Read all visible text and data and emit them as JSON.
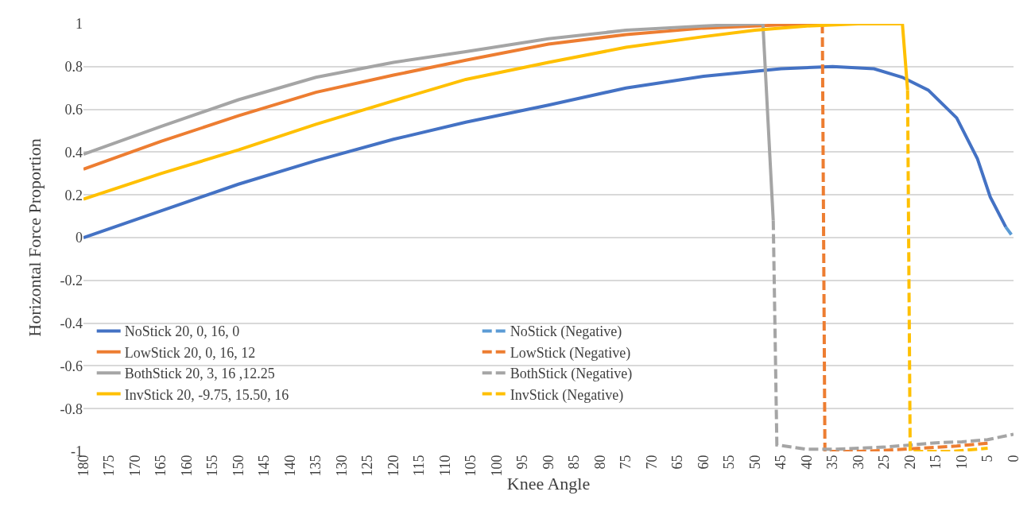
{
  "chart_data": {
    "type": "line",
    "xlabel": "Knee Angle",
    "ylabel": "Horizontal Force Proportion",
    "xlim": [
      180,
      0
    ],
    "xticks": [
      180,
      175,
      170,
      165,
      160,
      155,
      150,
      145,
      140,
      135,
      130,
      125,
      120,
      115,
      110,
      105,
      100,
      95,
      90,
      85,
      80,
      75,
      70,
      65,
      60,
      55,
      50,
      45,
      40,
      35,
      30,
      25,
      20,
      15,
      10,
      5,
      0
    ],
    "ylim": [
      -1,
      1
    ],
    "yticks": [
      -1,
      -0.8,
      -0.6,
      -0.4,
      -0.2,
      0,
      0.2,
      0.4,
      0.6,
      0.8,
      1
    ],
    "grid": "y",
    "legend": "bottom left",
    "marker": "none",
    "series": [
      {
        "name": "NoStick 20, 0, 16, 0",
        "color": "#4472c4",
        "line_style": "solid",
        "x": [
          180,
          165,
          150,
          135,
          120,
          106,
          90,
          75,
          60,
          45,
          35,
          27,
          21.5,
          16.5,
          11,
          7,
          4.5,
          1.5
        ],
        "values": [
          0,
          0.125,
          0.25,
          0.36,
          0.46,
          0.54,
          0.62,
          0.7,
          0.755,
          0.79,
          0.8,
          0.79,
          0.75,
          0.69,
          0.56,
          0.37,
          0.19,
          0.05
        ]
      },
      {
        "name": "NoStick (Negative)",
        "color": "#5b9bd5",
        "line_style": "dashed",
        "x": [
          1.5,
          0
        ],
        "values": [
          0.05,
          0
        ]
      },
      {
        "name": "LowStick 20, 0, 16, 12",
        "color": "#ed7d31",
        "line_style": "solid",
        "x": [
          180,
          165,
          150,
          135,
          120,
          106,
          90,
          75,
          60,
          45,
          37
        ],
        "values": [
          0.32,
          0.45,
          0.57,
          0.68,
          0.76,
          0.83,
          0.905,
          0.95,
          0.98,
          0.995,
          1
        ]
      },
      {
        "name": "LowStick (Negative)",
        "color": "#ed7d31",
        "line_style": "dashed",
        "x": [
          37,
          36.5,
          30,
          25,
          18,
          11,
          4.3
        ],
        "values": [
          1,
          -1,
          -1,
          -0.995,
          -0.985,
          -0.975,
          -0.96
        ]
      },
      {
        "name": "BothStick 20, 3, 16 ,12.25",
        "color": "#a5a5a5",
        "line_style": "solid",
        "x": [
          180,
          165,
          150,
          135,
          120,
          106,
          90,
          75,
          60,
          50,
          48.5,
          46.5
        ],
        "values": [
          0.39,
          0.52,
          0.645,
          0.75,
          0.82,
          0.87,
          0.93,
          0.97,
          0.99,
          1,
          1,
          0.08
        ]
      },
      {
        "name": "BothStick (Negative)",
        "color": "#a5a5a5",
        "line_style": "dashed",
        "x": [
          46.5,
          45.8,
          40,
          35,
          30,
          25,
          20,
          15,
          10,
          5,
          0
        ],
        "values": [
          0.08,
          -0.97,
          -0.99,
          -0.99,
          -0.985,
          -0.98,
          -0.97,
          -0.96,
          -0.955,
          -0.945,
          -0.92
        ]
      },
      {
        "name": "InvStick 20, -9.75, 15.50, 16",
        "color": "#ffc000",
        "line_style": "solid",
        "x": [
          180,
          165,
          150,
          135,
          120,
          106,
          90,
          75,
          60,
          50,
          40,
          30,
          21.5,
          20.5
        ],
        "values": [
          0.18,
          0.3,
          0.41,
          0.53,
          0.64,
          0.74,
          0.82,
          0.89,
          0.94,
          0.97,
          0.99,
          1,
          1,
          0.69
        ]
      },
      {
        "name": "InvStick (Negative)",
        "color": "#ffc000",
        "line_style": "dashed",
        "x": [
          20.5,
          20,
          18,
          12,
          5
        ],
        "values": [
          0.69,
          -1,
          -1,
          -1,
          -0.985
        ]
      }
    ]
  }
}
